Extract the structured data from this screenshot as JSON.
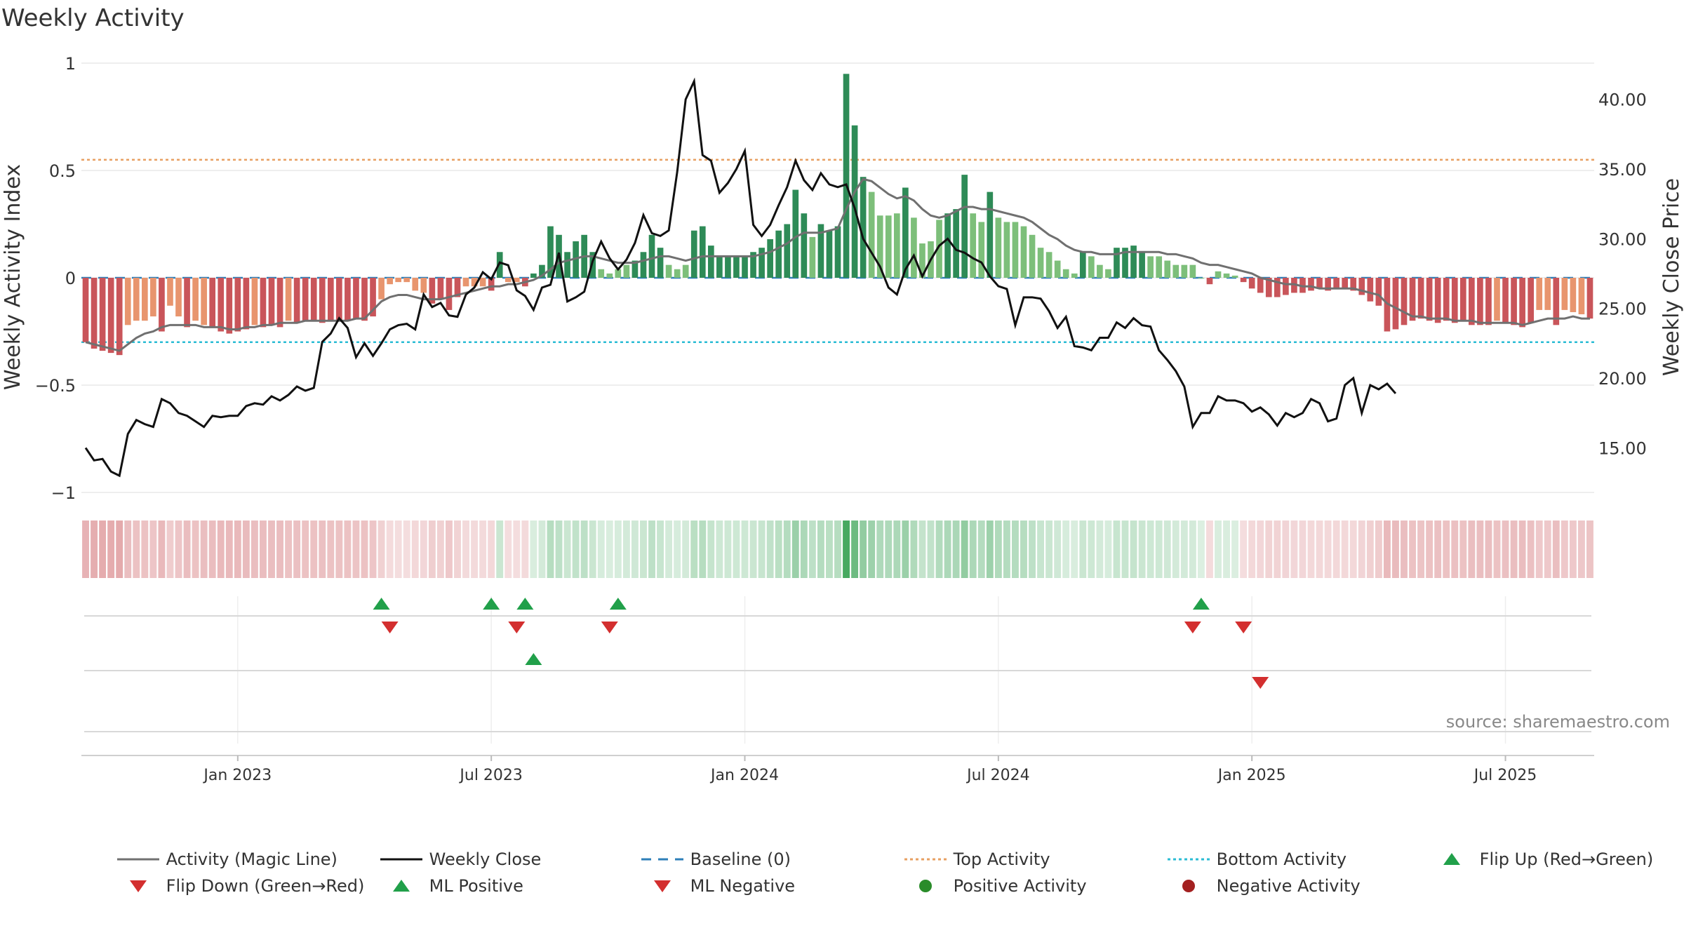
{
  "title": "Weekly Activity",
  "source_text": "source: sharemaestro.com",
  "chart_data": {
    "type": "bar",
    "xlabel": "",
    "ylabel_left": "Weekly Activity Index",
    "ylabel_right": "Weekly Close Price",
    "ylim_left": [
      -1,
      1
    ],
    "ylim_right": [
      11.8,
      42.6
    ],
    "left_ticks": [
      "1",
      "0.5",
      "0",
      "−0.5",
      "−1"
    ],
    "left_tick_values": [
      1,
      0.5,
      0,
      -0.5,
      -1
    ],
    "right_ticks": [
      "40.00",
      "35.00",
      "30.00",
      "25.00",
      "20.00",
      "15.00"
    ],
    "right_tick_values": [
      40,
      35,
      30,
      25,
      20,
      15
    ],
    "x_ticks": [
      "Jan 2023",
      "Jul 2023",
      "Jan 2024",
      "Jul 2024",
      "Jan 2025",
      "Jul 2025"
    ],
    "x_tick_weeks": [
      18,
      48,
      78,
      108,
      138,
      168
    ],
    "top_activity": 0.55,
    "bottom_activity": -0.3,
    "baseline": 0,
    "activity": [
      -0.3,
      -0.33,
      -0.34,
      -0.35,
      -0.36,
      -0.22,
      -0.2,
      -0.2,
      -0.18,
      -0.25,
      -0.13,
      -0.18,
      -0.23,
      -0.2,
      -0.22,
      -0.23,
      -0.25,
      -0.26,
      -0.25,
      -0.24,
      -0.22,
      -0.23,
      -0.22,
      -0.23,
      -0.2,
      -0.21,
      -0.2,
      -0.2,
      -0.21,
      -0.2,
      -0.2,
      -0.2,
      -0.19,
      -0.2,
      -0.18,
      -0.1,
      -0.03,
      -0.02,
      -0.02,
      -0.06,
      -0.07,
      -0.12,
      -0.1,
      -0.15,
      -0.09,
      -0.04,
      -0.04,
      -0.04,
      -0.06,
      0.12,
      -0.02,
      -0.02,
      -0.04,
      0.02,
      0.06,
      0.24,
      0.2,
      0.12,
      0.17,
      0.2,
      0.12,
      0.04,
      0.02,
      0.04,
      0.06,
      0.08,
      0.12,
      0.2,
      0.14,
      0.06,
      0.04,
      0.06,
      0.22,
      0.24,
      0.15,
      0.1,
      0.1,
      0.1,
      0.1,
      0.12,
      0.14,
      0.18,
      0.22,
      0.25,
      0.41,
      0.3,
      0.19,
      0.25,
      0.22,
      0.24,
      0.95,
      0.71,
      0.47,
      0.4,
      0.29,
      0.29,
      0.3,
      0.42,
      0.28,
      0.16,
      0.17,
      0.27,
      0.3,
      0.32,
      0.48,
      0.3,
      0.26,
      0.4,
      0.28,
      0.26,
      0.26,
      0.24,
      0.2,
      0.14,
      0.12,
      0.08,
      0.04,
      0.02,
      0.12,
      0.1,
      0.06,
      0.04,
      0.14,
      0.14,
      0.15,
      0.12,
      0.1,
      0.1,
      0.08,
      0.06,
      0.06,
      0.06,
      0.0,
      -0.03,
      0.03,
      0.02,
      0.01,
      -0.02,
      -0.05,
      -0.07,
      -0.09,
      -0.09,
      -0.08,
      -0.07,
      -0.07,
      -0.06,
      -0.05,
      -0.06,
      -0.05,
      -0.05,
      -0.06,
      -0.08,
      -0.11,
      -0.13,
      -0.25,
      -0.24,
      -0.22,
      -0.2,
      -0.19,
      -0.2,
      -0.21,
      -0.2,
      -0.21,
      -0.2,
      -0.22,
      -0.22,
      -0.22,
      -0.2,
      -0.21,
      -0.22,
      -0.23,
      -0.21,
      -0.15,
      -0.15,
      -0.22,
      -0.15,
      -0.16,
      -0.17,
      -0.19
    ],
    "magic_line": [
      -0.3,
      -0.31,
      -0.32,
      -0.33,
      -0.34,
      -0.31,
      -0.28,
      -0.26,
      -0.25,
      -0.23,
      -0.22,
      -0.22,
      -0.22,
      -0.22,
      -0.23,
      -0.23,
      -0.23,
      -0.24,
      -0.24,
      -0.23,
      -0.23,
      -0.22,
      -0.22,
      -0.21,
      -0.21,
      -0.21,
      -0.2,
      -0.2,
      -0.2,
      -0.2,
      -0.2,
      -0.2,
      -0.19,
      -0.19,
      -0.15,
      -0.11,
      -0.09,
      -0.08,
      -0.08,
      -0.09,
      -0.1,
      -0.1,
      -0.1,
      -0.09,
      -0.08,
      -0.07,
      -0.06,
      -0.05,
      -0.04,
      -0.04,
      -0.03,
      -0.03,
      -0.02,
      -0.01,
      0.01,
      0.04,
      0.07,
      0.08,
      0.09,
      0.1,
      0.1,
      0.09,
      0.08,
      0.07,
      0.07,
      0.07,
      0.08,
      0.09,
      0.1,
      0.1,
      0.09,
      0.08,
      0.09,
      0.1,
      0.1,
      0.1,
      0.1,
      0.1,
      0.1,
      0.1,
      0.11,
      0.12,
      0.14,
      0.16,
      0.19,
      0.21,
      0.21,
      0.21,
      0.22,
      0.23,
      0.32,
      0.4,
      0.46,
      0.45,
      0.42,
      0.39,
      0.37,
      0.38,
      0.36,
      0.32,
      0.29,
      0.28,
      0.29,
      0.31,
      0.33,
      0.33,
      0.32,
      0.32,
      0.31,
      0.3,
      0.29,
      0.28,
      0.26,
      0.23,
      0.2,
      0.18,
      0.15,
      0.13,
      0.12,
      0.12,
      0.11,
      0.11,
      0.11,
      0.12,
      0.12,
      0.12,
      0.12,
      0.12,
      0.11,
      0.11,
      0.1,
      0.09,
      0.07,
      0.06,
      0.06,
      0.05,
      0.04,
      0.03,
      0.02,
      0.0,
      -0.01,
      -0.02,
      -0.03,
      -0.03,
      -0.04,
      -0.04,
      -0.05,
      -0.05,
      -0.05,
      -0.05,
      -0.05,
      -0.06,
      -0.07,
      -0.08,
      -0.12,
      -0.14,
      -0.16,
      -0.18,
      -0.18,
      -0.19,
      -0.19,
      -0.19,
      -0.2,
      -0.2,
      -0.2,
      -0.21,
      -0.21,
      -0.21,
      -0.21,
      -0.21,
      -0.22,
      -0.21,
      -0.2,
      -0.19,
      -0.19,
      -0.19,
      -0.18,
      -0.19,
      -0.19
    ],
    "weekly_close": [
      15.0,
      14.1,
      14.2,
      13.3,
      13.0,
      16.0,
      17.0,
      16.7,
      16.5,
      18.5,
      18.2,
      17.5,
      17.3,
      16.9,
      16.5,
      17.3,
      17.2,
      17.3,
      17.3,
      18.0,
      18.2,
      18.1,
      18.7,
      18.4,
      18.8,
      19.4,
      19.1,
      19.3,
      22.6,
      23.2,
      24.3,
      23.6,
      21.5,
      22.5,
      21.6,
      22.5,
      23.5,
      23.8,
      23.9,
      23.5,
      26.0,
      25.1,
      25.4,
      24.5,
      24.4,
      26.0,
      26.5,
      27.6,
      27.1,
      28.3,
      28.1,
      26.3,
      25.9,
      24.9,
      26.5,
      26.7,
      29.0,
      25.5,
      25.8,
      26.2,
      28.4,
      29.8,
      28.6,
      27.8,
      28.5,
      29.7,
      31.7,
      30.4,
      30.2,
      30.6,
      34.8,
      40.0,
      41.3,
      36.0,
      35.6,
      33.3,
      34.0,
      35.0,
      36.3,
      31.0,
      30.2,
      31.0,
      32.4,
      33.7,
      35.6,
      34.2,
      33.5,
      34.7,
      33.9,
      33.7,
      33.9,
      32.2,
      30.0,
      29.0,
      28.0,
      26.5,
      26.0,
      27.8,
      28.8,
      27.3,
      28.5,
      29.5,
      30.0,
      29.2,
      29.0,
      28.6,
      28.3,
      27.3,
      26.6,
      26.4,
      23.8,
      25.8,
      25.8,
      25.7,
      24.8,
      23.6,
      24.4,
      22.3,
      22.2,
      22.0,
      22.9,
      22.9,
      24.0,
      23.6,
      24.3,
      23.8,
      23.7,
      22.0,
      21.3,
      20.5,
      19.4,
      16.5,
      17.5,
      17.5,
      18.7,
      18.4,
      18.4,
      18.2,
      17.6,
      17.9,
      17.4,
      16.6,
      17.5,
      17.2,
      17.5,
      18.5,
      18.2,
      16.9,
      17.1,
      19.5,
      20.0,
      17.5,
      19.5,
      19.2,
      19.6,
      18.9
    ],
    "heat_strip": "per-week activity shading, green = positive, red = negative",
    "events_row1": [
      {
        "week": 35,
        "type": "flip_up"
      },
      {
        "week": 36,
        "type": "flip_down"
      },
      {
        "week": 48,
        "type": "flip_up"
      },
      {
        "week": 51,
        "type": "flip_down"
      },
      {
        "week": 52,
        "type": "flip_up"
      },
      {
        "week": 62,
        "type": "flip_down"
      },
      {
        "week": 63,
        "type": "flip_up"
      },
      {
        "week": 131,
        "type": "flip_down"
      },
      {
        "week": 132,
        "type": "flip_up"
      },
      {
        "week": 137,
        "type": "flip_down"
      }
    ],
    "events_row2": [
      {
        "week": 53,
        "type": "ml_positive"
      },
      {
        "week": 139,
        "type": "ml_negative"
      }
    ],
    "colors": {
      "strong_pos": "#2e8b57",
      "weak_pos": "#7dbf7a",
      "strong_neg": "#c9555a",
      "weak_neg": "#e8956e",
      "magic_line": "#707070",
      "close": "#111111",
      "baseline": "#2e7fb8",
      "top": "#e8a062",
      "bottom": "#2bbcd4",
      "up": "#21a04a",
      "down": "#d32f2f",
      "pos_dot": "#2a8c2a",
      "neg_dot": "#a32020"
    }
  },
  "legend": {
    "magic_line": "Activity (Magic Line)",
    "weekly_close": "Weekly Close",
    "baseline": "Baseline (0)",
    "top_activity": "Top Activity",
    "bottom_activity": "Bottom Activity",
    "flip_up": "Flip Up (Red→Green)",
    "flip_down": "Flip Down (Green→Red)",
    "ml_positive": "ML Positive",
    "ml_negative": "ML Negative",
    "positive_activity": "Positive Activity",
    "negative_activity": "Negative Activity"
  }
}
